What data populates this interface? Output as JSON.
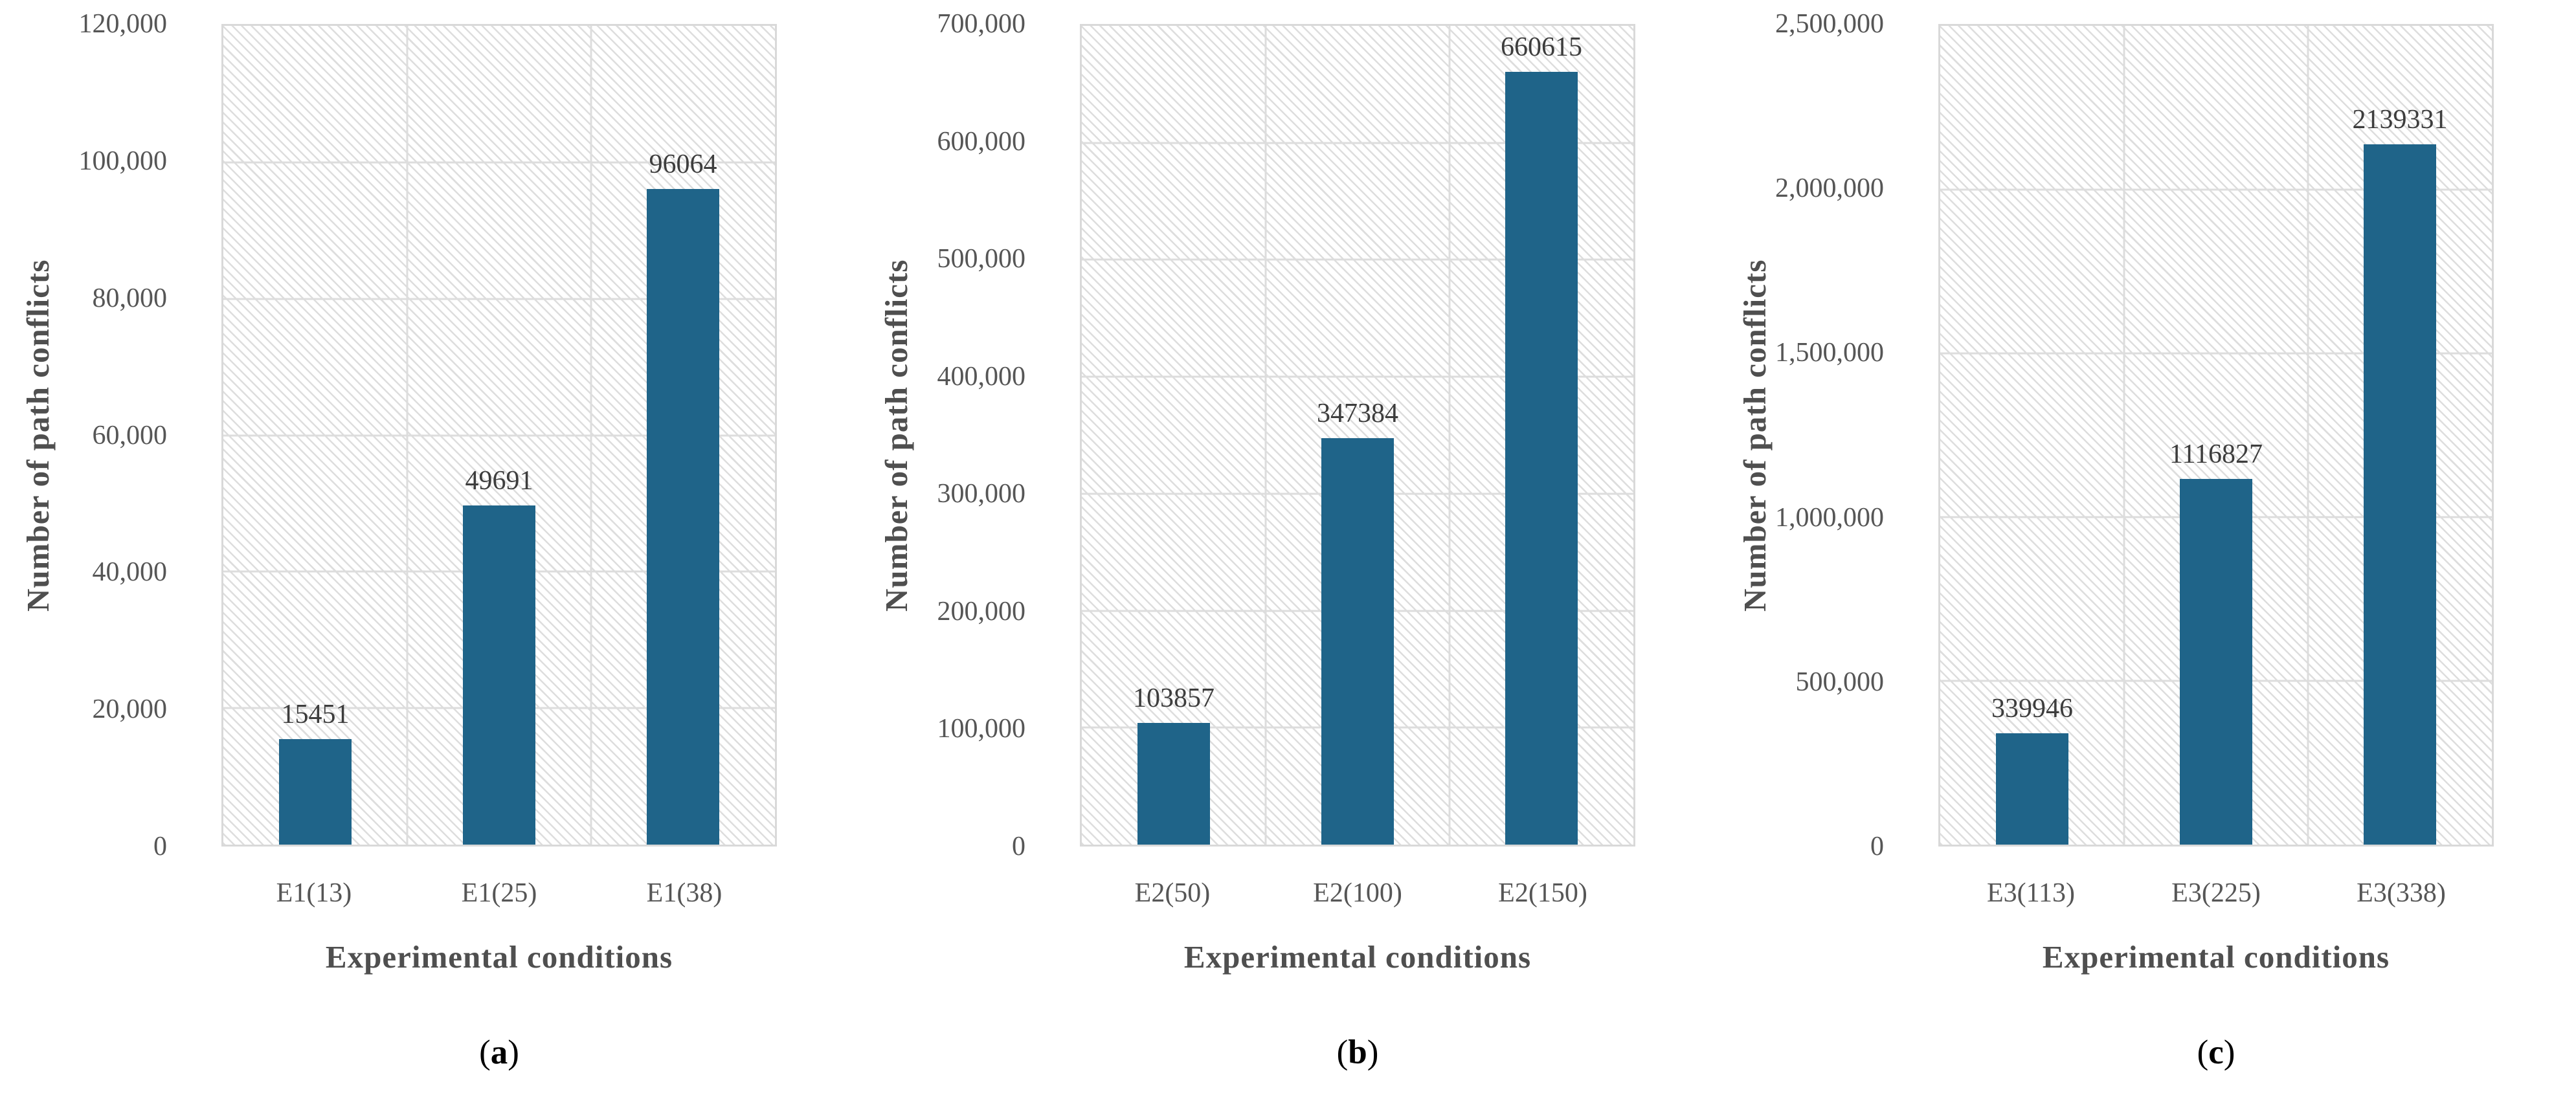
{
  "figure": {
    "y_axis_title": "Number of path conflicts",
    "x_axis_title": "Experimental conditions"
  },
  "colors": {
    "bar": "#1F6489",
    "gridline": "#DDDDDD",
    "plot_border": "#D9D9D9",
    "tick_text": "#565656",
    "axis_title_text": "#4F4F4F",
    "bar_label_text": "#3D3D3D",
    "caption_text": "#000000"
  },
  "chart_data": [
    {
      "type": "bar",
      "panel": "a",
      "caption_open": "(",
      "caption_close": ")",
      "title": "",
      "xlabel": "Experimental conditions",
      "ylabel": "Number of path conflicts",
      "categories": [
        "E1(13)",
        "E1(25)",
        "E1(38)"
      ],
      "values": [
        15451,
        49691,
        96064
      ],
      "bar_labels": [
        "15451",
        "49691",
        "96064"
      ],
      "ylim": [
        0,
        120000
      ],
      "y_step": 20000,
      "y_tick_labels": [
        "0",
        "20,000",
        "40,000",
        "60,000",
        "80,000",
        "100,000",
        "120,000"
      ],
      "grid": true,
      "legend": "none",
      "background_hatch": true
    },
    {
      "type": "bar",
      "panel": "b",
      "caption_open": "(",
      "caption_close": ")",
      "title": "",
      "xlabel": "Experimental conditions",
      "ylabel": "Number of path conflicts",
      "categories": [
        "E2(50)",
        "E2(100)",
        "E2(150)"
      ],
      "values": [
        103857,
        347384,
        660615
      ],
      "bar_labels": [
        "103857",
        "347384",
        "660615"
      ],
      "ylim": [
        0,
        700000
      ],
      "y_step": 100000,
      "y_tick_labels": [
        "0",
        "100,000",
        "200,000",
        "300,000",
        "400,000",
        "500,000",
        "600,000",
        "700,000"
      ],
      "grid": true,
      "legend": "none",
      "background_hatch": true
    },
    {
      "type": "bar",
      "panel": "c",
      "caption_open": "(",
      "caption_close": ")",
      "title": "",
      "xlabel": "Experimental conditions",
      "ylabel": "Number of path conflicts",
      "categories": [
        "E3(113)",
        "E3(225)",
        "E3(338)"
      ],
      "values": [
        339946,
        1116827,
        2139331
      ],
      "bar_labels": [
        "339946",
        "1116827",
        "2139331"
      ],
      "ylim": [
        0,
        2500000
      ],
      "y_step": 500000,
      "y_tick_labels": [
        "0",
        "500,000",
        "1,000,000",
        "1,500,000",
        "2,000,000",
        "2,500,000"
      ],
      "grid": true,
      "legend": "none",
      "background_hatch": true
    }
  ]
}
